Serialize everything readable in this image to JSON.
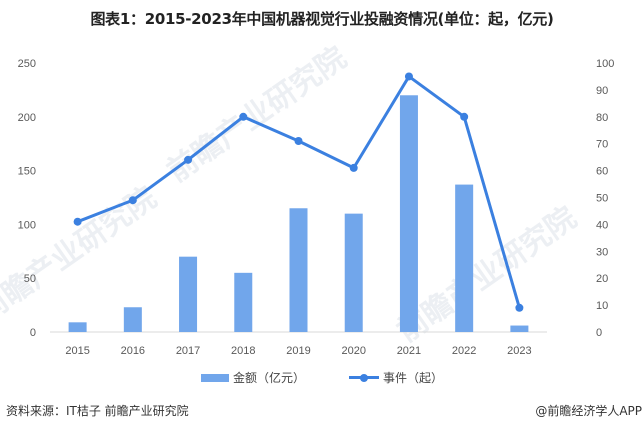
{
  "title": "图表1：2015-2023年中国机器视觉行业投融资情况(单位：起，亿元)",
  "footer": {
    "source": "资料来源：IT桔子 前瞻产业研究院",
    "credit": "@前瞻经济学人APP"
  },
  "legend": {
    "bar_label": "金额（亿元）",
    "line_label": "事件（起）"
  },
  "watermark": {
    "text": "前瞻产业研究院"
  },
  "colors": {
    "bar": "#71a6eb",
    "line": "#3b80e0",
    "axis": "#d9d9d9",
    "tick_text": "#595959"
  },
  "chart_data": {
    "type": "bar+line",
    "title": "图表1：2015-2023年中国机器视觉行业投融资情况(单位：起，亿元)",
    "categories": [
      "2015",
      "2016",
      "2017",
      "2018",
      "2019",
      "2020",
      "2021",
      "2022",
      "2023"
    ],
    "series": [
      {
        "name": "金额（亿元）",
        "type": "bar",
        "axis": "left",
        "values": [
          9,
          23,
          70,
          55,
          115,
          110,
          220,
          137,
          6
        ]
      },
      {
        "name": "事件（起）",
        "type": "line",
        "axis": "right",
        "values": [
          41,
          49,
          64,
          80,
          71,
          61,
          95,
          80,
          9
        ]
      }
    ],
    "left_axis": {
      "ylim": [
        0,
        250
      ],
      "ticks": [
        "0",
        "50",
        "100",
        "150",
        "200",
        "250"
      ]
    },
    "right_axis": {
      "ylim": [
        0,
        100
      ],
      "ticks": [
        "0",
        "10",
        "20",
        "30",
        "40",
        "50",
        "60",
        "70",
        "80",
        "90",
        "100"
      ]
    },
    "xlabel": "",
    "ylabel": "",
    "grid": false,
    "legend_position": "bottom"
  }
}
